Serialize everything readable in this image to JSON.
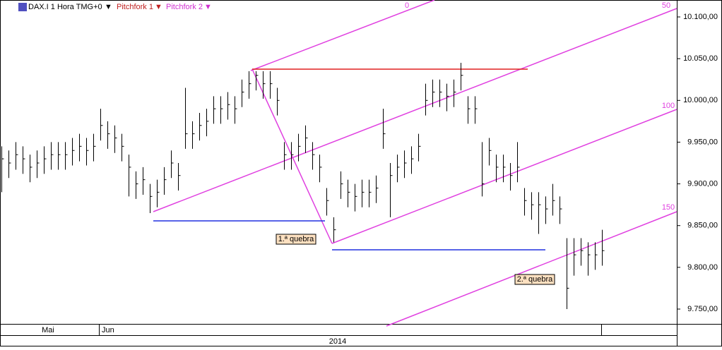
{
  "header": {
    "symbol": "DAX.I 1 Hora TMG+0",
    "tools": [
      "Pitchfork 1",
      "Pitchfork 2"
    ]
  },
  "chart_data": {
    "type": "ohlc",
    "close": [
      9930,
      9925,
      9935,
      9930,
      9920,
      9925,
      9930,
      9935,
      9935,
      9935,
      9940,
      9945,
      9940,
      9945,
      9970,
      9960,
      9955,
      9945,
      9920,
      9900,
      9905,
      9885,
      9890,
      9905,
      9925,
      9910,
      9960,
      9960,
      9970,
      9975,
      9990,
      9990,
      9995,
      9990,
      10010,
      10020,
      10030,
      10020,
      10020,
      10000,
      9935,
      9935,
      9945,
      9955,
      9935,
      9920,
      9880,
      9845,
      9900,
      9890,
      9885,
      9890,
      9890,
      9895,
      9960,
      9910,
      9920,
      9925,
      9930,
      9945,
      10000,
      10010,
      10010,
      10005,
      10010,
      10030,
      9990,
      9990,
      9900,
      9940,
      9920,
      9920,
      9910,
      9920,
      9880,
      9875,
      9875,
      9870,
      9880,
      9870,
      9775,
      9815,
      9820,
      9815,
      9815,
      9820
    ],
    "high": [
      9945,
      9940,
      9950,
      9945,
      9935,
      9940,
      9945,
      9950,
      9950,
      9950,
      9955,
      9960,
      9955,
      9960,
      9990,
      9975,
      9970,
      9960,
      9935,
      9915,
      9920,
      9900,
      9905,
      9920,
      9940,
      9925,
      10015,
      9975,
      9985,
      9990,
      10005,
      10005,
      10010,
      10005,
      10025,
      10035,
      10035,
      10035,
      10035,
      10015,
      9950,
      9950,
      9960,
      9970,
      9950,
      9935,
      9895,
      9860,
      9915,
      9905,
      9900,
      9905,
      9905,
      9910,
      9990,
      9925,
      9935,
      9940,
      9945,
      9960,
      10020,
      10025,
      10025,
      10020,
      10025,
      10045,
      10005,
      10005,
      9950,
      9955,
      9935,
      9935,
      9925,
      9950,
      9895,
      9890,
      9890,
      9885,
      9900,
      9885,
      9835,
      9835,
      9835,
      9830,
      9830,
      9845
    ],
    "low": [
      9890,
      9907,
      9917,
      9912,
      9902,
      9907,
      9912,
      9917,
      9917,
      9917,
      9922,
      9927,
      9922,
      9927,
      9952,
      9942,
      9937,
      9927,
      9885,
      9882,
      9887,
      9865,
      9872,
      9887,
      9907,
      9892,
      9942,
      9942,
      9952,
      9957,
      9972,
      9972,
      9977,
      9972,
      9992,
      10002,
      10012,
      10002,
      10002,
      9982,
      9917,
      9917,
      9927,
      9937,
      9917,
      9902,
      9862,
      9830,
      9882,
      9872,
      9867,
      9872,
      9872,
      9877,
      9942,
      9860,
      9902,
      9907,
      9912,
      9927,
      9982,
      9992,
      9992,
      9987,
      9992,
      10012,
      9972,
      9972,
      9885,
      9922,
      9902,
      9902,
      9892,
      9902,
      9862,
      9857,
      9840,
      9852,
      9862,
      9852,
      9750,
      9790,
      9802,
      9790,
      9797,
      9802
    ],
    "ylim": [
      9725,
      10115
    ],
    "yticks": [
      {
        "value": 9750,
        "label": "9.750,00"
      },
      {
        "value": 9800,
        "label": "9.800,00"
      },
      {
        "value": 9850,
        "label": "9.850,00"
      },
      {
        "value": 9900,
        "label": "9.900,00"
      },
      {
        "value": 9950,
        "label": "9.950,00"
      },
      {
        "value": 10000,
        "label": "10.000,00"
      },
      {
        "value": 10050,
        "label": "10.050,00"
      },
      {
        "value": 10100,
        "label": "10.100,00"
      }
    ],
    "x_labels": [
      "Mai",
      "Jun"
    ],
    "year": "2014",
    "annotations": [
      "0",
      "50",
      "100",
      "150",
      "1.ª quebra",
      "2.ª quebra"
    ],
    "color": "#000000"
  }
}
